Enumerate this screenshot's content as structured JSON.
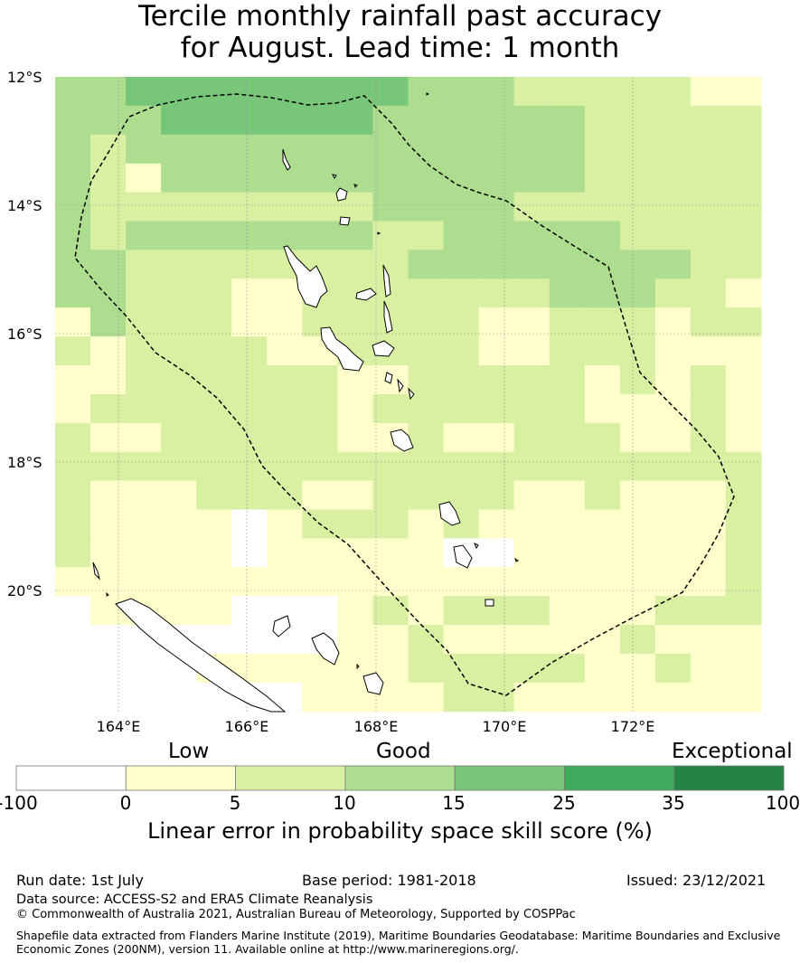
{
  "title": {
    "line1": "Tercile monthly rainfall past accuracy",
    "line2": "for August. Lead time: 1 month"
  },
  "map": {
    "lat_labels": [
      "12°S",
      "14°S",
      "16°S",
      "18°S",
      "20°S"
    ],
    "lon_labels": [
      "164°E",
      "166°E",
      "168°E",
      "170°E",
      "172°E"
    ],
    "lon_range": [
      163,
      174
    ],
    "lat_range": [
      -21.9,
      -12
    ],
    "grid_step_deg": 0.833,
    "skill_grid_note": "category index per cell: 0=<0 (white),1=0-5,2=5-10,3=10-15,4=15-25,5=25-35,6=35-100",
    "skill_rows": [
      "33444444443332222211",
      "33344444433333322222",
      "32333333333333322222",
      "32133333333333322222",
      "32222222233332222222",
      "32333333322333332222",
      "33222222223333333322",
      "33222112222222333221",
      "13222112222211222122",
      "21222211222211222111",
      "11222222112222212121",
      "12222222122222211121",
      "21122222112112221121",
      "22222222222222222222",
      "21112221122221121112",
      "21111012221211111112",
      "21111011111001111112",
      "11111111111111111112",
      "01111000121222111222",
      "00000000112111112111",
      "00001111112222211211",
      "00000001111221111111"
    ]
  },
  "legend": {
    "band_labels": [
      "Low",
      "Good",
      "Exceptional"
    ],
    "ticks": [
      "-100",
      "0",
      "5",
      "10",
      "15",
      "25",
      "35",
      "100"
    ],
    "colors": [
      "#ffffff",
      "#ffffcc",
      "#d9f0a3",
      "#addd8e",
      "#78c679",
      "#41ab5d",
      "#238443"
    ],
    "title": "Linear error in probability space skill score (%)"
  },
  "footer": {
    "run_date": "Run date: 1st July",
    "base_period": "Base period: 1981-2018",
    "issued": "Issued: 23/12/2021",
    "data_source": "Data source: ACCESS-S2 and ERA5 Climate Reanalysis",
    "copyright": "© Commonwealth of Australia 2021, Australian Bureau of Meteorology, Supported by COSPPac",
    "shapefile": "Shapefile data extracted from Flanders Marine Institute (2019), Maritime Boundaries Geodatabase: Maritime Boundaries and Exclusive Economic Zones (200NM), version 11. Available online at http://www.marineregions.org/."
  }
}
